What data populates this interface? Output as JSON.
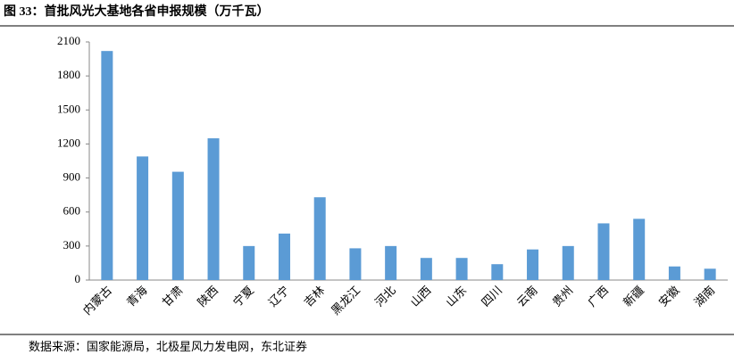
{
  "chart_data": {
    "type": "bar",
    "title": "图 33：首批风光大基地各省申报规模（万千瓦）",
    "source": "数据来源：国家能源局，北极星风力发电网，东北证券",
    "categories": [
      "内蒙古",
      "青海",
      "甘肃",
      "陕西",
      "宁夏",
      "辽宁",
      "吉林",
      "黑龙江",
      "河北",
      "山西",
      "山东",
      "四川",
      "云南",
      "贵州",
      "广西",
      "新疆",
      "安徽",
      "湖南"
    ],
    "values": [
      2020,
      1090,
      955,
      1250,
      300,
      410,
      730,
      280,
      300,
      195,
      195,
      140,
      270,
      300,
      500,
      540,
      120,
      100
    ],
    "color": "#5b9bd5",
    "ylim": [
      0,
      2100
    ],
    "yticks": [
      0,
      300,
      600,
      900,
      1200,
      1500,
      1800,
      2100
    ],
    "grid": false
  }
}
